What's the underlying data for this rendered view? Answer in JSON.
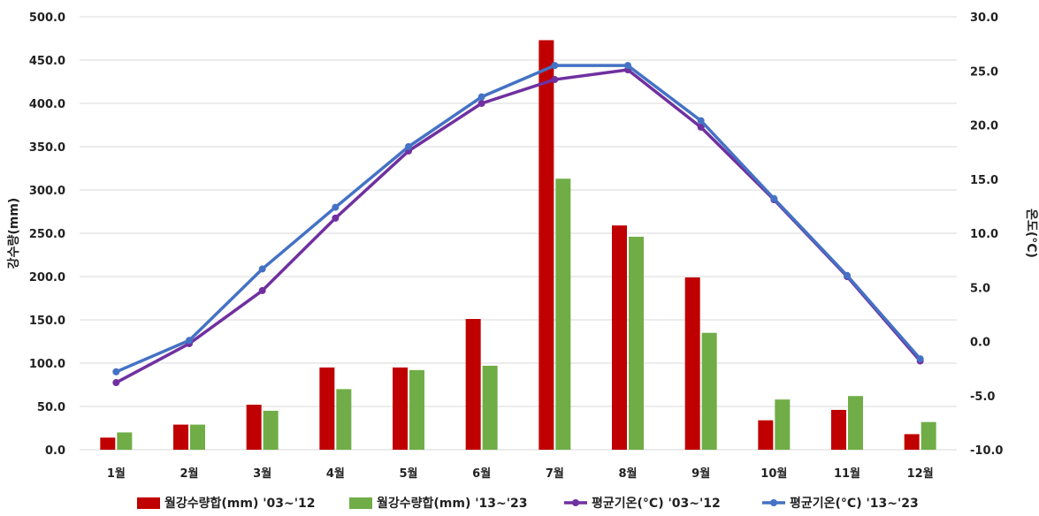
{
  "chart_data": {
    "type": "bar",
    "categories": [
      "1월",
      "2월",
      "3월",
      "4월",
      "5월",
      "6월",
      "7월",
      "8월",
      "9월",
      "10월",
      "11월",
      "12월"
    ],
    "series": [
      {
        "name": "월강수량합(mm) '03~'12",
        "kind": "bar",
        "axis": "left",
        "color": "#c00000",
        "values": [
          14,
          29,
          52,
          95,
          95,
          151,
          473,
          259,
          199,
          34,
          46,
          18
        ]
      },
      {
        "name": "월강수량합(mm) '13~'23",
        "kind": "bar",
        "axis": "left",
        "color": "#70ad47",
        "values": [
          20,
          29,
          45,
          70,
          92,
          97,
          313,
          246,
          135,
          58,
          62,
          32
        ]
      },
      {
        "name": "평균기온(°C) '03~'12",
        "kind": "line",
        "axis": "right",
        "color": "#7030a0",
        "values": [
          -3.8,
          -0.2,
          4.7,
          11.4,
          17.6,
          22.0,
          24.2,
          25.1,
          19.8,
          13.1,
          6.0,
          -1.8
        ]
      },
      {
        "name": "평균기온(°C) '13~'23",
        "kind": "line",
        "axis": "right",
        "color": "#4472c4",
        "values": [
          -2.8,
          0.1,
          6.7,
          12.4,
          18.0,
          22.6,
          25.5,
          25.5,
          20.4,
          13.2,
          6.1,
          -1.6
        ]
      }
    ],
    "ylabel": "강수량(mm)",
    "y2label": "온도(°C)",
    "ylim": [
      0,
      500
    ],
    "y2lim": [
      -10,
      30
    ],
    "yticks": [
      "0.0",
      "50.0",
      "100.0",
      "150.0",
      "200.0",
      "250.0",
      "300.0",
      "350.0",
      "400.0",
      "450.0",
      "500.0"
    ],
    "y2ticks": [
      "-10.0",
      "-5.0",
      "0.0",
      "5.0",
      "10.0",
      "15.0",
      "20.0",
      "25.0",
      "30.0"
    ],
    "grid": true,
    "legend_position": "bottom"
  }
}
